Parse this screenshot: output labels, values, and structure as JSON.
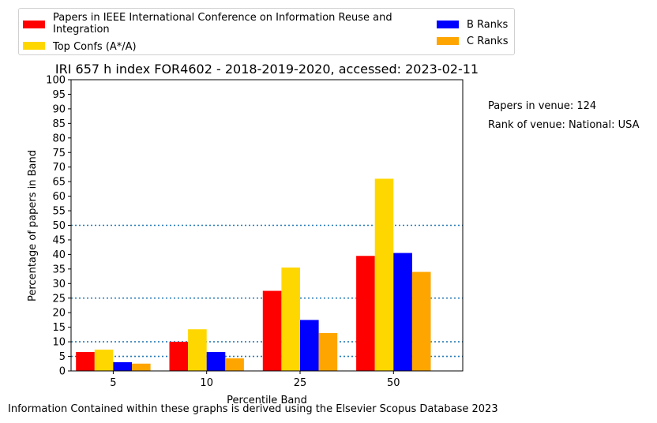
{
  "chart_data": {
    "type": "bar",
    "title": "IRI 657 h index FOR4602 - 2018-2019-2020, accessed: 2023-02-11",
    "xlabel": "Percentile Band",
    "ylabel": "Percentage of papers in Band",
    "categories": [
      "5",
      "10",
      "25",
      "50"
    ],
    "ylim": [
      0,
      100
    ],
    "yticks": [
      0,
      5,
      10,
      15,
      20,
      25,
      30,
      35,
      40,
      45,
      50,
      55,
      60,
      65,
      70,
      75,
      80,
      85,
      90,
      95,
      100
    ],
    "reference_lines": [
      5,
      10,
      25,
      50
    ],
    "grid": false,
    "legend_position": "top",
    "series": [
      {
        "name": "Papers in IEEE International Conference on Information Reuse and Integration",
        "color": "#ff0000",
        "values": [
          6.5,
          10,
          27.5,
          39.5
        ]
      },
      {
        "name": "Top Confs (A*/A)",
        "color": "#ffd700",
        "values": [
          7.3,
          14.3,
          35.5,
          66
        ]
      },
      {
        "name": "B Ranks",
        "color": "#0000ff",
        "values": [
          3,
          6.5,
          17.5,
          40.5
        ]
      },
      {
        "name": "C Ranks",
        "color": "#ffa500",
        "values": [
          2.5,
          4.3,
          13,
          34
        ]
      }
    ]
  },
  "annotations": {
    "papers_in_venue": "Papers in venue: 124",
    "rank_of_venue": "Rank of venue: National: USA"
  },
  "footer": "Information Contained within these graphs is derived using the Elsevier Scopus Database 2023"
}
